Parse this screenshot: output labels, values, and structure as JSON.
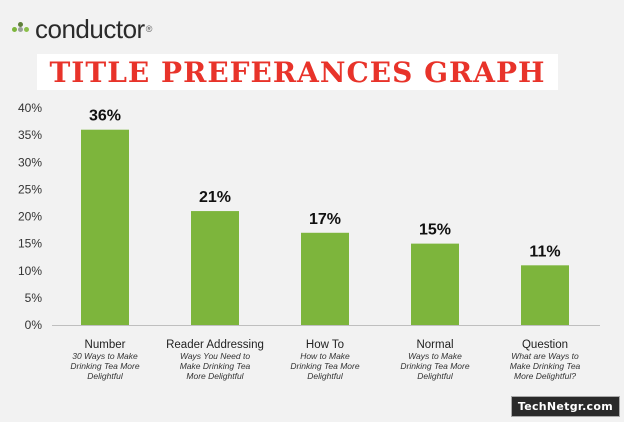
{
  "logo": {
    "text": "conductor",
    "reg": "®"
  },
  "title_banner": {
    "text": "TITLE PREFERANCES GRAPH"
  },
  "watermark": {
    "text": "TechNetgr.com"
  },
  "colors": {
    "bar": "#7db53c",
    "title": "#e8332a",
    "logo_dots": [
      "#7db53c",
      "#9aa09a",
      "#8bbf4a",
      "#5f7f3a"
    ]
  },
  "chart_data": {
    "type": "bar",
    "categories": [
      "Number",
      "Reader Addressing",
      "How To",
      "Normal",
      "Question"
    ],
    "category_sublabels": [
      [
        "30 Ways to Make",
        "Drinking Tea More",
        "Delightful"
      ],
      [
        "Ways You Need to",
        "Make Drinking Tea",
        "More Delightful"
      ],
      [
        "How to Make",
        "Drinking Tea More",
        "Delightful"
      ],
      [
        "Ways to Make",
        "Drinking Tea More",
        "Delightful"
      ],
      [
        "What are Ways to",
        "Make Drinking Tea",
        "More Delightful?"
      ]
    ],
    "values": [
      36,
      21,
      17,
      15,
      11
    ],
    "data_labels": [
      "36%",
      "21%",
      "17%",
      "15%",
      "11%"
    ],
    "ylim": [
      0,
      40
    ],
    "yticks": [
      "0%",
      "5%",
      "10%",
      "15%",
      "20%",
      "25%",
      "30%",
      "35%",
      "40%"
    ],
    "grid": false,
    "legend": "none"
  }
}
